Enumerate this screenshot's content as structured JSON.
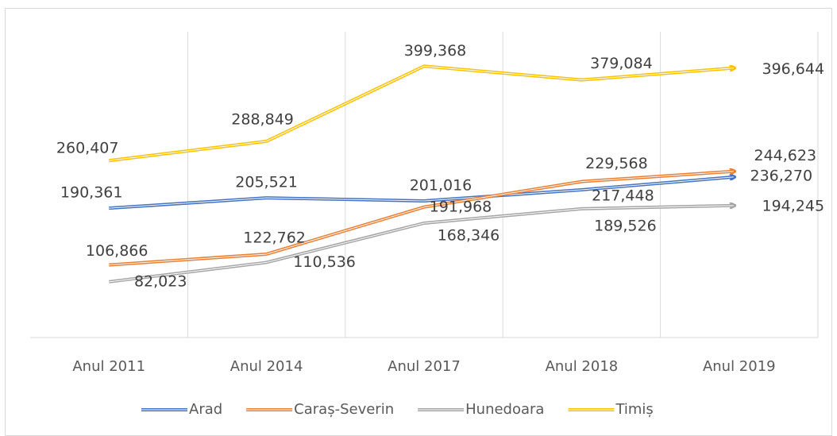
{
  "chart_data": {
    "type": "line",
    "categories": [
      "Anul 2011",
      "Anul 2014",
      "Anul 2017",
      "Anul 2018",
      "Anul 2019"
    ],
    "series": [
      {
        "name": "Arad",
        "color": "#4472c4",
        "values": [
          190361,
          205521,
          201016,
          217448,
          236270
        ],
        "value_labels": [
          "190,361",
          "205,521",
          "201,016",
          "217,448",
          "236,270"
        ]
      },
      {
        "name": "Caraș-Severin",
        "color": "#ed7d31",
        "values": [
          106866,
          122762,
          191968,
          229568,
          244623
        ],
        "value_labels": [
          "106,866",
          "122,762",
          "191,968",
          "229,568",
          "244,623"
        ]
      },
      {
        "name": "Hunedoara",
        "color": "#a5a5a5",
        "values": [
          82023,
          110536,
          168346,
          189526,
          194245
        ],
        "value_labels": [
          "82,023",
          "110,536",
          "168,346",
          "189,526",
          "194,245"
        ]
      },
      {
        "name": "Timiș",
        "color": "#ffc000",
        "values": [
          260407,
          288849,
          399368,
          379084,
          396644
        ],
        "value_labels": [
          "260,407",
          "288,849",
          "399,368",
          "379,084",
          "396,644"
        ]
      }
    ],
    "ylim": [
      0,
      450000
    ],
    "grid": true,
    "legend": "bottom"
  }
}
